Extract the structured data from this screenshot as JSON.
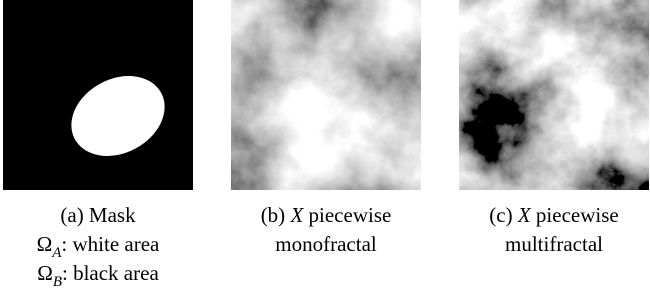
{
  "panels": [
    {
      "kind": "mask",
      "caption": [
        [
          {
            "text": "(a) Mask"
          }
        ],
        [
          {
            "text": "Ω"
          },
          {
            "text": "A",
            "italic": true,
            "sub": true
          },
          {
            "text": ": white area"
          }
        ],
        [
          {
            "text": "Ω"
          },
          {
            "text": "B",
            "italic": true,
            "sub": true
          },
          {
            "text": ": black area"
          }
        ]
      ]
    },
    {
      "kind": "monofractal",
      "caption": [
        [
          {
            "text": "(b) "
          },
          {
            "text": "X",
            "italic": true
          },
          {
            "text": " piecewise"
          }
        ],
        [
          {
            "text": "monofractal"
          }
        ]
      ]
    },
    {
      "kind": "multifractal",
      "caption": [
        [
          {
            "text": "(c) "
          },
          {
            "text": "X",
            "italic": true
          },
          {
            "text": " piecewise"
          }
        ],
        [
          {
            "text": "multifractal"
          }
        ]
      ]
    }
  ]
}
